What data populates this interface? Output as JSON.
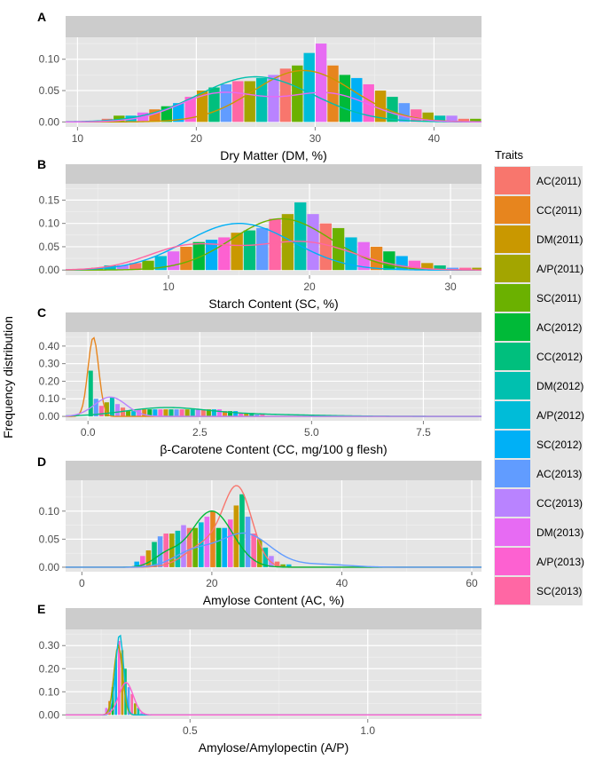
{
  "figure": {
    "ylabel": "Frequency distribution",
    "legend_title": "Traits"
  },
  "legend": {
    "entries": [
      {
        "label": "AC(2011)",
        "color": "#F8766D"
      },
      {
        "label": "CC(2011)",
        "color": "#E7851E"
      },
      {
        "label": "DM(2011)",
        "color": "#C99800"
      },
      {
        "label": "A/P(2011)",
        "color": "#A3A500"
      },
      {
        "label": "SC(2011)",
        "color": "#6BB100"
      },
      {
        "label": "AC(2012)",
        "color": "#00BA38"
      },
      {
        "label": "CC(2012)",
        "color": "#00BF7D"
      },
      {
        "label": "DM(2012)",
        "color": "#00C0AF"
      },
      {
        "label": "A/P(2012)",
        "color": "#00BCD8"
      },
      {
        "label": "SC(2012)",
        "color": "#00B0F6"
      },
      {
        "label": "AC(2013)",
        "color": "#619CFF"
      },
      {
        "label": "CC(2013)",
        "color": "#B983FF"
      },
      {
        "label": "DM(2013)",
        "color": "#E76BF3"
      },
      {
        "label": "A/P(2013)",
        "color": "#FD61D1"
      },
      {
        "label": "SC(2013)",
        "color": "#FF67A4"
      }
    ]
  },
  "chart_data": [
    {
      "panel": "A",
      "type": "histogram-density",
      "xlabel": "Dry Matter (DM, %)",
      "xlim": [
        9,
        44
      ],
      "ylim": [
        -0.008,
        0.135
      ],
      "xticks": [
        10,
        20,
        30,
        40
      ],
      "xtick_labels": [
        "10",
        "20",
        "30",
        "40"
      ],
      "yticks": [
        0,
        0.05,
        0.1
      ],
      "ytick_labels": [
        "0.00",
        "0.05",
        "0.10"
      ],
      "series": [
        {
          "name": "DM(2011)",
          "color": "#C99800",
          "curve": "sum:0.082:29:4.2"
        },
        {
          "name": "DM(2012)",
          "color": "#00C0AF",
          "curve": "sum:0.072:25:4.8"
        },
        {
          "name": "DM(2013)",
          "color": "#E76BF3",
          "curve": "sum:0.045:22:3.5,0.045:31:3.6"
        }
      ],
      "bars": {
        "start": 12,
        "end": 44,
        "step": 1,
        "values": [
          0.005,
          0.01,
          0.01,
          0.015,
          0.02,
          0.025,
          0.03,
          0.04,
          0.05,
          0.055,
          0.06,
          0.065,
          0.065,
          0.07,
          0.075,
          0.085,
          0.09,
          0.11,
          0.125,
          0.09,
          0.075,
          0.07,
          0.06,
          0.05,
          0.04,
          0.03,
          0.02,
          0.015,
          0.01,
          0.01,
          0.005,
          0.005,
          0.005
        ]
      }
    },
    {
      "panel": "B",
      "type": "histogram-density",
      "xlabel": "Starch Content (SC, %)",
      "xlim": [
        2.7,
        32.2
      ],
      "ylim": [
        -0.011,
        0.185
      ],
      "xticks": [
        10,
        20,
        30
      ],
      "xtick_labels": [
        "10",
        "20",
        "30"
      ],
      "yticks": [
        0,
        0.05,
        0.1,
        0.15
      ],
      "ytick_labels": [
        "0.00",
        "0.05",
        "0.10",
        "0.15"
      ],
      "series": [
        {
          "name": "SC(2011)",
          "color": "#6BB100",
          "curve": "sum:0.11:18:3.5"
        },
        {
          "name": "SC(2012)",
          "color": "#00B0F6",
          "curve": "sum:0.1:15:3.8"
        },
        {
          "name": "SC(2013)",
          "color": "#FF67A4",
          "curve": "sum:0.05:11.5:3,0.06:19.5:3.6"
        }
      ],
      "bars": {
        "start": 4.5,
        "end": 32,
        "step": 0.9,
        "values": [
          0.005,
          0.01,
          0.01,
          0.015,
          0.02,
          0.03,
          0.04,
          0.05,
          0.06,
          0.065,
          0.07,
          0.08,
          0.085,
          0.09,
          0.11,
          0.12,
          0.145,
          0.12,
          0.1,
          0.09,
          0.07,
          0.06,
          0.05,
          0.04,
          0.03,
          0.02,
          0.015,
          0.01,
          0.005,
          0.005,
          0.005
        ]
      }
    },
    {
      "panel": "C",
      "type": "histogram-density",
      "xlabel": "β-Carotene Content (CC, mg/100 g flesh)",
      "xlim": [
        -0.5,
        8.8
      ],
      "ylim": [
        -0.025,
        0.48
      ],
      "xticks": [
        0,
        2.5,
        5,
        7.5
      ],
      "xtick_labels": [
        "0.0",
        "2.5",
        "5.0",
        "7.5"
      ],
      "yticks": [
        0,
        0.1,
        0.2,
        0.3,
        0.4
      ],
      "ytick_labels": [
        "0.00",
        "0.10",
        "0.20",
        "0.30",
        "0.40"
      ],
      "series": [
        {
          "name": "CC(2011)",
          "color": "#E7851E",
          "curve": "sum:0.45:0.12:0.12"
        },
        {
          "name": "CC(2012)",
          "color": "#00BF7D",
          "curve": "sum:0.045:1.7:0.9,0.012:3.5:1.4"
        },
        {
          "name": "CC(2013)",
          "color": "#B983FF",
          "curve": "sum:0.11:0.5:0.35"
        }
      ],
      "bars": {
        "start": 0,
        "end": 3.8,
        "step": 0.12,
        "values": [
          0.26,
          0.1,
          0.06,
          0.08,
          0.11,
          0.07,
          0.05,
          0.03,
          0.03,
          0.04,
          0.04,
          0.04,
          0.04,
          0.04,
          0.04,
          0.04,
          0.04,
          0.04,
          0.04,
          0.04,
          0.04,
          0.04,
          0.04,
          0.04,
          0.04,
          0.03,
          0.03,
          0.03,
          0.02,
          0.02,
          0.02,
          0.01,
          0.01
        ]
      }
    },
    {
      "panel": "D",
      "type": "histogram-density",
      "xlabel": "Amylose Content (AC, %)",
      "xlim": [
        -2.5,
        61.5
      ],
      "ylim": [
        -0.008,
        0.155
      ],
      "xticks": [
        0,
        20,
        40,
        60
      ],
      "xtick_labels": [
        "0",
        "20",
        "40",
        "60"
      ],
      "yticks": [
        0,
        0.05,
        0.1
      ],
      "ytick_labels": [
        "0.00",
        "0.05",
        "0.10"
      ],
      "series": [
        {
          "name": "AC(2011)",
          "color": "#F8766D",
          "curve": "sum:0.135:24:2.2,0.04:19:3"
        },
        {
          "name": "AC(2012)",
          "color": "#00BA38",
          "curve": "sum:0.1:20:3.2,0.02:13:2"
        },
        {
          "name": "AC(2013)",
          "color": "#619CFF",
          "curve": "sum:0.06:25:4,0.025:17:3,0.005:37:4"
        }
      ],
      "bars": {
        "start": 8,
        "end": 32,
        "step": 0.9,
        "values": [
          0.01,
          0.02,
          0.03,
          0.045,
          0.055,
          0.06,
          0.06,
          0.065,
          0.075,
          0.07,
          0.07,
          0.08,
          0.09,
          0.1,
          0.07,
          0.07,
          0.085,
          0.11,
          0.13,
          0.09,
          0.06,
          0.05,
          0.035,
          0.02,
          0.01,
          0.005,
          0.005
        ]
      }
    },
    {
      "panel": "E",
      "type": "histogram-density",
      "xlabel": "Amylose/Amylopectin (A/P)",
      "xlim": [
        0.15,
        1.32
      ],
      "ylim": [
        -0.018,
        0.37
      ],
      "xticks": [
        0.5,
        1.0
      ],
      "xtick_labels": [
        "0.5",
        "1.0"
      ],
      "yticks": [
        0,
        0.1,
        0.2,
        0.3
      ],
      "ytick_labels": [
        "0.00",
        "0.10",
        "0.20",
        "0.30"
      ],
      "series": [
        {
          "name": "A/P(2011)",
          "color": "#A3A500",
          "curve": "sum:0.3:0.298:0.012"
        },
        {
          "name": "A/P(2012)",
          "color": "#00BCD8",
          "curve": "sum:0.35:0.302:0.011"
        },
        {
          "name": "A/P(2013)",
          "color": "#FD61D1",
          "curve": "sum:0.14:0.32:0.02"
        }
      ],
      "bars": {
        "start": 0.26,
        "end": 0.36,
        "step": 0.009,
        "values": [
          0.03,
          0.06,
          0.12,
          0.24,
          0.32,
          0.28,
          0.2,
          0.12,
          0.09,
          0.05,
          0.03,
          0.01
        ]
      }
    }
  ]
}
